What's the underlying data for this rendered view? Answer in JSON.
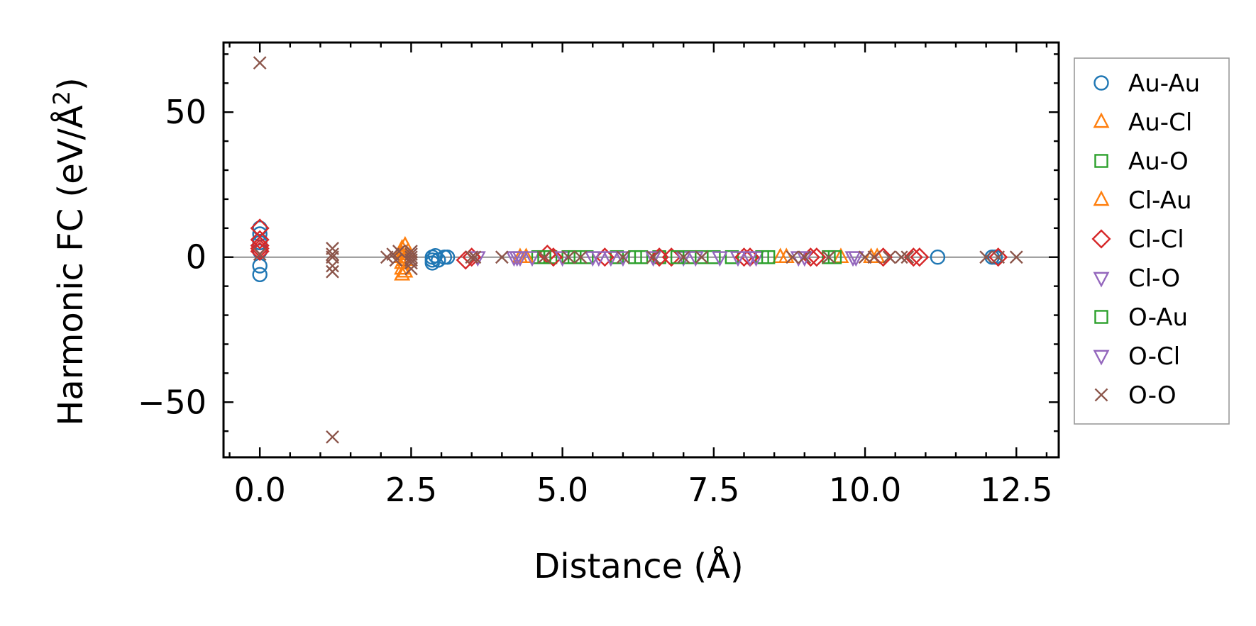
{
  "chart_data": {
    "type": "scatter",
    "xlabel": "Distance (Å)",
    "ylabel_main": "Harmonic FC (eV/Å",
    "ylabel_sup": "2",
    "ylabel_end": ")",
    "xlim": [
      -0.6,
      13.2
    ],
    "ylim": [
      -69,
      74
    ],
    "xticks": [
      0.0,
      2.5,
      5.0,
      7.5,
      10.0,
      12.5
    ],
    "xtick_labels": [
      "0.0",
      "2.5",
      "5.0",
      "7.5",
      "10.0",
      "12.5"
    ],
    "yticks": [
      -50,
      0,
      50
    ],
    "ytick_labels": [
      "−50",
      "0",
      "50"
    ],
    "zero_line": true,
    "grid": false,
    "legend_position": "outside-right",
    "series": [
      {
        "name": "Au-Au",
        "marker": "circle",
        "color": "#1f77b4",
        "points": [
          [
            0.0,
            -6
          ],
          [
            0.0,
            -3
          ],
          [
            0.0,
            2
          ],
          [
            0.0,
            5
          ],
          [
            0.0,
            8
          ],
          [
            0.0,
            10
          ],
          [
            2.85,
            -1
          ],
          [
            2.85,
            0
          ],
          [
            2.85,
            -2
          ],
          [
            2.9,
            0.5
          ],
          [
            2.95,
            -1
          ],
          [
            3.05,
            0
          ],
          [
            3.1,
            0
          ],
          [
            11.2,
            0
          ],
          [
            12.1,
            0
          ],
          [
            12.15,
            0
          ]
        ]
      },
      {
        "name": "Au-Cl",
        "marker": "triangle-up",
        "color": "#ff7f0e",
        "points": [
          [
            2.35,
            -6
          ],
          [
            2.35,
            -4
          ],
          [
            2.35,
            -2
          ],
          [
            2.35,
            0
          ],
          [
            2.35,
            1
          ],
          [
            2.35,
            3
          ],
          [
            2.4,
            4
          ],
          [
            2.4,
            -5
          ],
          [
            4.3,
            0
          ],
          [
            8.6,
            0
          ],
          [
            9.6,
            0
          ],
          [
            10.2,
            0
          ]
        ]
      },
      {
        "name": "Au-O",
        "marker": "square",
        "color": "#2ca02c",
        "points": [
          [
            4.6,
            0
          ],
          [
            4.8,
            0
          ],
          [
            5.1,
            0
          ],
          [
            5.4,
            0
          ],
          [
            5.9,
            0
          ],
          [
            6.3,
            0
          ],
          [
            6.6,
            0
          ],
          [
            7.1,
            0
          ],
          [
            7.5,
            0
          ],
          [
            7.8,
            0
          ],
          [
            8.3,
            0
          ],
          [
            9.4,
            0
          ]
        ]
      },
      {
        "name": "Cl-Au",
        "marker": "triangle-up",
        "color": "#ff7f0e",
        "points": [
          [
            2.4,
            -1
          ],
          [
            2.45,
            2
          ],
          [
            4.4,
            0
          ],
          [
            8.7,
            0
          ],
          [
            10.1,
            0
          ]
        ]
      },
      {
        "name": "Cl-Cl",
        "marker": "diamond",
        "color": "#d62728",
        "points": [
          [
            0.0,
            2
          ],
          [
            0.0,
            3
          ],
          [
            0.0,
            4
          ],
          [
            0.0,
            6
          ],
          [
            0.0,
            10
          ],
          [
            3.4,
            -1
          ],
          [
            3.5,
            0
          ],
          [
            4.75,
            1
          ],
          [
            4.85,
            0
          ],
          [
            5.7,
            0
          ],
          [
            6.6,
            0
          ],
          [
            6.8,
            0
          ],
          [
            8.0,
            0
          ],
          [
            8.1,
            0
          ],
          [
            9.1,
            0
          ],
          [
            9.2,
            0
          ],
          [
            10.3,
            0
          ],
          [
            10.8,
            0
          ],
          [
            10.9,
            0
          ],
          [
            12.2,
            0
          ]
        ]
      },
      {
        "name": "Cl-O",
        "marker": "triangle-down",
        "color": "#9467bd",
        "points": [
          [
            3.6,
            0
          ],
          [
            4.2,
            0
          ],
          [
            4.3,
            0
          ],
          [
            4.5,
            0
          ],
          [
            5.0,
            0
          ],
          [
            5.6,
            0
          ],
          [
            6.0,
            0
          ],
          [
            6.5,
            0
          ],
          [
            7.0,
            0
          ],
          [
            7.6,
            0
          ],
          [
            7.9,
            0
          ],
          [
            8.2,
            0
          ],
          [
            9.0,
            0
          ],
          [
            9.8,
            0
          ]
        ]
      },
      {
        "name": "O-Au",
        "marker": "square",
        "color": "#2ca02c",
        "points": [
          [
            4.7,
            0
          ],
          [
            5.2,
            0
          ],
          [
            6.2,
            0
          ],
          [
            6.9,
            0
          ],
          [
            7.3,
            0
          ],
          [
            8.4,
            0
          ],
          [
            9.5,
            0
          ]
        ]
      },
      {
        "name": "O-Cl",
        "marker": "triangle-down",
        "color": "#9467bd",
        "points": [
          [
            4.25,
            0
          ],
          [
            5.5,
            0
          ],
          [
            5.8,
            0
          ],
          [
            7.2,
            0
          ],
          [
            8.1,
            0
          ],
          [
            8.9,
            0
          ],
          [
            9.85,
            0
          ]
        ]
      },
      {
        "name": "O-O",
        "marker": "x",
        "color": "#8c564b",
        "points": [
          [
            0.0,
            67
          ],
          [
            0.0,
            1
          ],
          [
            1.2,
            -62
          ],
          [
            1.2,
            -5
          ],
          [
            1.2,
            -3
          ],
          [
            1.2,
            0
          ],
          [
            1.2,
            1
          ],
          [
            1.2,
            3
          ],
          [
            2.1,
            0
          ],
          [
            2.2,
            1
          ],
          [
            2.25,
            -1
          ],
          [
            2.3,
            2
          ],
          [
            2.5,
            -4
          ],
          [
            2.5,
            -2
          ],
          [
            2.5,
            -1
          ],
          [
            2.5,
            0
          ],
          [
            2.5,
            1
          ],
          [
            2.5,
            2
          ],
          [
            3.5,
            0
          ],
          [
            3.55,
            0
          ],
          [
            4.0,
            0
          ],
          [
            4.7,
            0
          ],
          [
            5.1,
            0
          ],
          [
            5.3,
            0
          ],
          [
            6.0,
            0
          ],
          [
            6.5,
            0
          ],
          [
            7.0,
            0
          ],
          [
            7.3,
            0
          ],
          [
            8.8,
            0
          ],
          [
            9.0,
            0
          ],
          [
            9.4,
            0
          ],
          [
            10.0,
            0
          ],
          [
            10.15,
            0
          ],
          [
            10.4,
            0
          ],
          [
            10.6,
            0
          ],
          [
            10.7,
            0
          ],
          [
            12.0,
            0
          ],
          [
            12.2,
            0
          ],
          [
            12.5,
            0
          ]
        ]
      }
    ]
  }
}
